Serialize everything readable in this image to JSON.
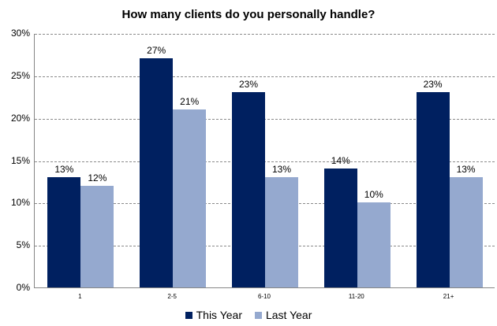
{
  "chart_data": {
    "type": "bar",
    "title": "How many clients do you personally handle?",
    "xlabel": "",
    "ylabel": "",
    "ylim": [
      0,
      30
    ],
    "yticks": [
      "0%",
      "5%",
      "10%",
      "15%",
      "20%",
      "25%",
      "30%"
    ],
    "grid": true,
    "legend_position": "bottom",
    "categories": [
      "1",
      "2-5",
      "6-10",
      "11-20",
      "21+"
    ],
    "series": [
      {
        "name": "This Year",
        "color": "#002060",
        "values": [
          13,
          27,
          23,
          14,
          23
        ],
        "labels": [
          "13%",
          "27%",
          "23%",
          "14%",
          "23%"
        ]
      },
      {
        "name": "Last Year",
        "color": "#95A9CF",
        "values": [
          12,
          21,
          13,
          10,
          13
        ],
        "labels": [
          "12%",
          "21%",
          "13%",
          "10%",
          "13%"
        ]
      }
    ]
  },
  "legend": {
    "this_year": "This Year",
    "last_year": "Last Year"
  }
}
